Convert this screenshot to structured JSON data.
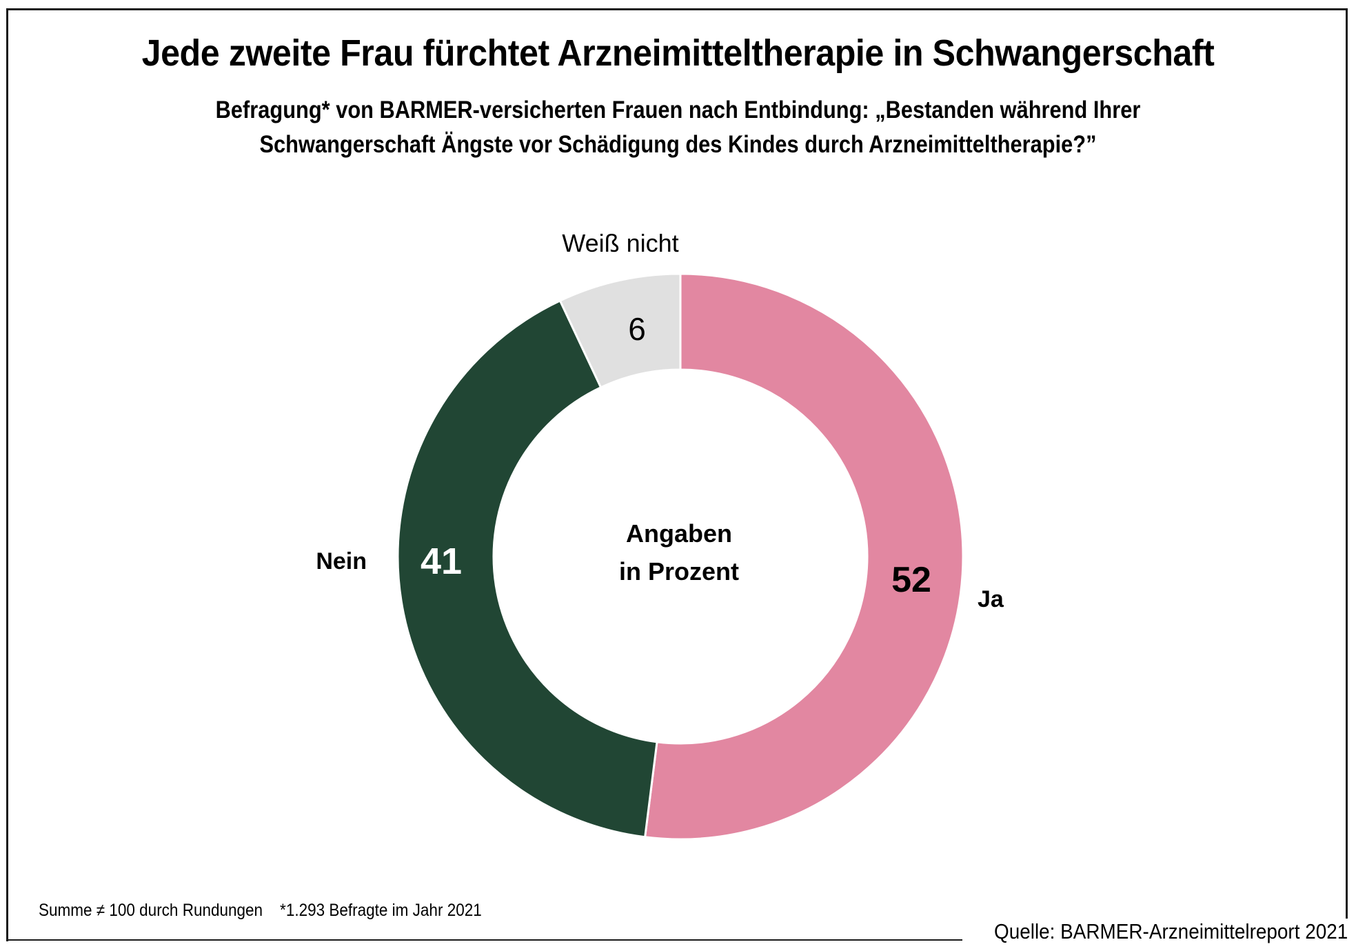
{
  "chart_data": {
    "type": "pie",
    "variant": "donut",
    "title": "Jede zweite Frau fürchtet Arzneimitteltherapie in Schwangerschaft",
    "subtitle_lines": [
      "Befragung* von BARMER-versicherten Frauen nach Entbindung: „Bestanden während Ihrer",
      "Schwangerschaft Ängste vor Schädigung des Kindes durch Arzneimitteltherapie?”"
    ],
    "center_label": [
      "Angaben",
      "in Prozent"
    ],
    "unit": "%",
    "slices": [
      {
        "label": "Ja",
        "value": 52,
        "color": "#E287A1",
        "value_text_color": "#000000"
      },
      {
        "label": "Nein",
        "value": 41,
        "color": "#214634",
        "value_text_color": "#FFFFFF"
      },
      {
        "label": "Weiß nicht",
        "value": 6,
        "color": "#E0E0E0",
        "value_text_color": "#000000"
      }
    ],
    "start_angle_deg": 0,
    "direction": "clockwise"
  },
  "footnote": "Summe ≠ 100 durch Rundungen    *1.293 Befragte im Jahr 2021",
  "source": "Quelle: BARMER-Arzneimittelreport 2021"
}
